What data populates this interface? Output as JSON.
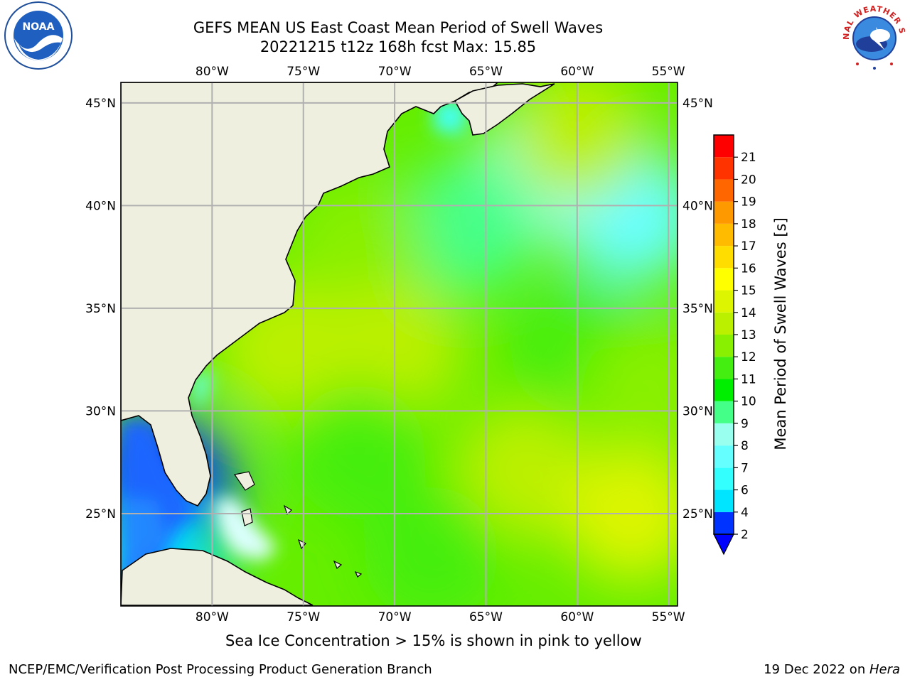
{
  "title": {
    "line1": "GEFS MEAN US East Coast Mean Period of Swell Waves",
    "line2": "20221215 t12z 168h fcst   Max: 15.85"
  },
  "map": {
    "lon_labels": [
      "80°W",
      "75°W",
      "70°W",
      "65°W",
      "60°W",
      "55°W"
    ],
    "lat_labels": [
      "45°N",
      "40°N",
      "35°N",
      "30°N",
      "25°N"
    ],
    "lon_values": [
      -80,
      -75,
      -70,
      -65,
      -60,
      -55
    ],
    "lat_values": [
      45,
      40,
      35,
      30,
      25
    ],
    "extent": {
      "lon_min": -85,
      "lon_max": -54.5,
      "lat_min": 20.5,
      "lat_max": 46
    },
    "land_color": "#efefdf",
    "grid_color": "#b0b0b0",
    "fields": [
      {
        "lon": -57,
        "lat": 39.5,
        "period": 7.5
      },
      {
        "lon": -62,
        "lat": 41.5,
        "period": 8.5
      },
      {
        "lon": -66,
        "lat": 39,
        "period": 9.5
      },
      {
        "lon": -60,
        "lat": 43.5,
        "period": 13
      },
      {
        "lon": -72,
        "lat": 38,
        "period": 12.5
      },
      {
        "lon": -76,
        "lat": 33,
        "period": 13.5
      },
      {
        "lon": -70,
        "lat": 33,
        "period": 13.3
      },
      {
        "lon": -63,
        "lat": 27,
        "period": 13.8
      },
      {
        "lon": -57,
        "lat": 25,
        "period": 14
      },
      {
        "lon": -72,
        "lat": 28,
        "period": 11
      },
      {
        "lon": -68,
        "lat": 23,
        "period": 11.5
      },
      {
        "lon": -60,
        "lat": 33,
        "period": 11
      },
      {
        "lon": -56,
        "lat": 31,
        "period": 12
      },
      {
        "lon": -82.5,
        "lat": 26.5,
        "period": 3
      },
      {
        "lon": -83,
        "lat": 22,
        "period": 5
      }
    ]
  },
  "colorbar": {
    "title": "Mean Period of Swell Waves [s]",
    "ticks": [
      "2",
      "4",
      "6",
      "7",
      "8",
      "9",
      "10",
      "11",
      "12",
      "13",
      "14",
      "15",
      "16",
      "17",
      "18",
      "19",
      "20",
      "21"
    ],
    "colors": [
      "#0033ff",
      "#00e5ff",
      "#33ffff",
      "#66ffff",
      "#99ffee",
      "#44ff88",
      "#00ee00",
      "#44ee11",
      "#88f000",
      "#bbf000",
      "#ddf500",
      "#ffff00",
      "#ffdd00",
      "#ffbb00",
      "#ff9900",
      "#ff6600",
      "#ff3300",
      "#ff0000"
    ],
    "under_color": "#0000ff"
  },
  "ice_note": "Sea Ice Concentration > 15% is shown in pink to yellow",
  "footer": {
    "left": "NCEP/EMC/Verification Post Processing Product Generation Branch",
    "right_date": "19 Dec 2022 on ",
    "right_host": "Hera"
  },
  "logos": {
    "noaa_text": "NOAA",
    "nws_text": "NATIONAL WEATHER SERVICE"
  }
}
